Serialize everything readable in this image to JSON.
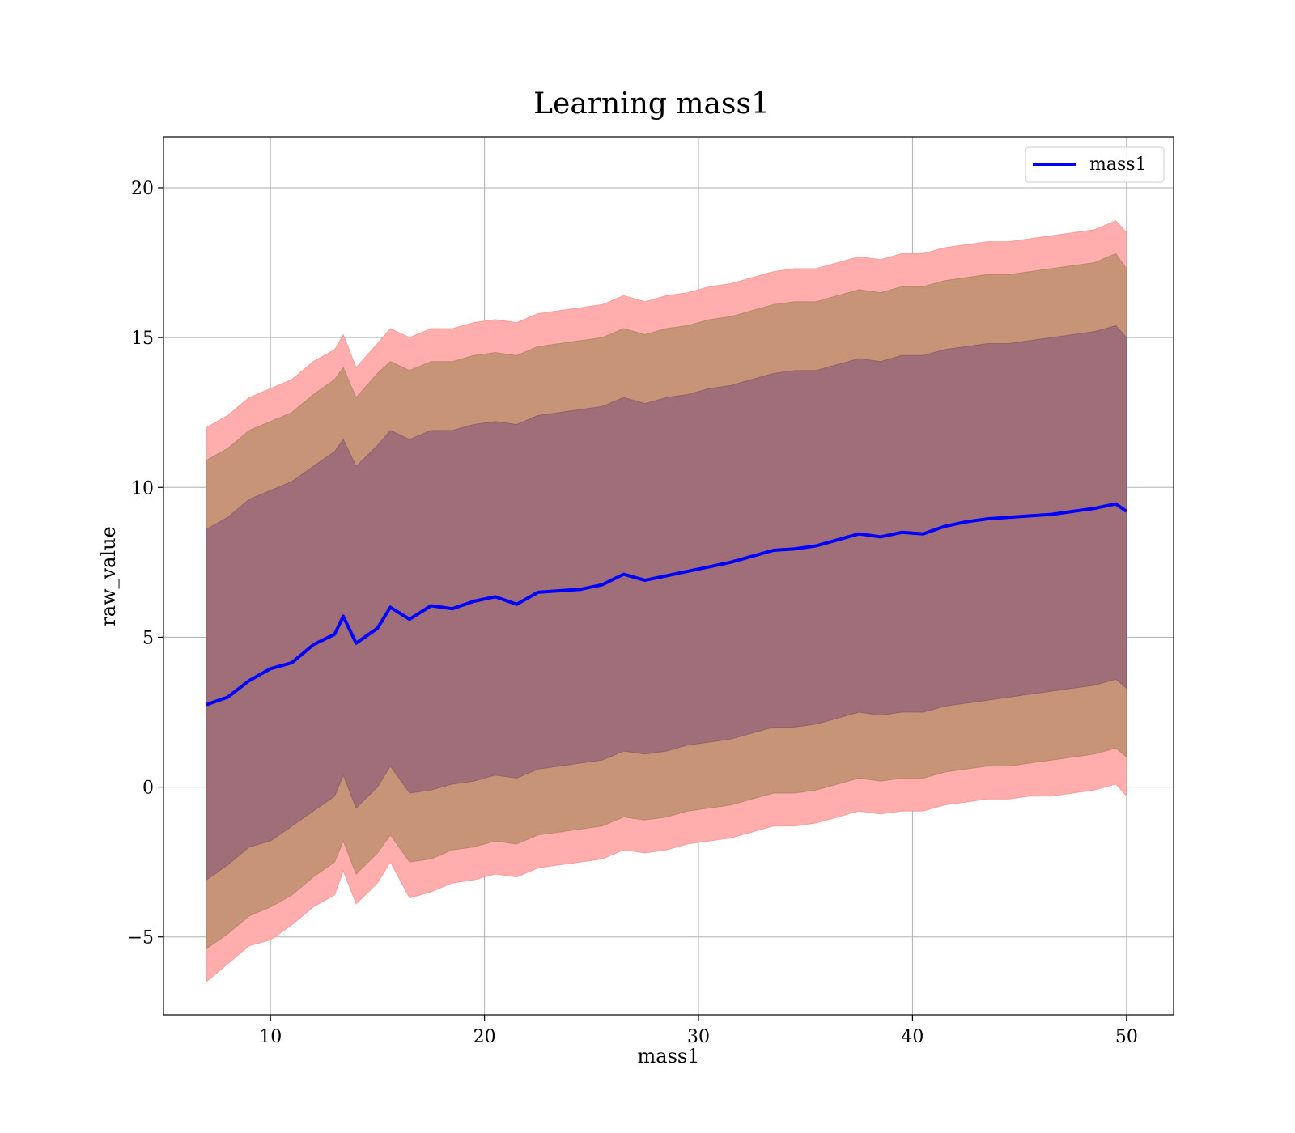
{
  "chart_data": {
    "type": "area",
    "title": "Learning mass1",
    "xlabel": "mass1",
    "ylabel": "raw_value",
    "xlim": [
      5,
      52.2
    ],
    "ylim": [
      -7.6,
      21.7
    ],
    "xticks": [
      10,
      20,
      30,
      40,
      50
    ],
    "yticks": [
      -5,
      0,
      5,
      10,
      15,
      20
    ],
    "xtick_labels": [
      "10",
      "20",
      "30",
      "40",
      "50"
    ],
    "ytick_labels": [
      "−5",
      "0",
      "5",
      "10",
      "15",
      "20"
    ],
    "grid": true,
    "legend": {
      "placement": "top-right",
      "entries": [
        "mass1"
      ]
    },
    "colors": {
      "line": "#0000ff",
      "band_outer": "#ffadad",
      "band_middle": "#c89478",
      "band_inner": "#a06e78"
    },
    "x": [
      7,
      8,
      9,
      10,
      11,
      12,
      13,
      13.4,
      14,
      15,
      15.6,
      16.5,
      17.5,
      18.5,
      19.5,
      20.5,
      21.5,
      22.5,
      23.5,
      24.5,
      25.5,
      26.5,
      27.5,
      28.5,
      29.5,
      30.5,
      31.5,
      32.5,
      33.5,
      34.5,
      35.5,
      36.5,
      37.5,
      38.5,
      39.5,
      40.5,
      41.5,
      42.5,
      43.5,
      44.5,
      45.5,
      46.5,
      47.5,
      48.5,
      49.5,
      50
    ],
    "series": [
      {
        "name": "mass1",
        "values": [
          2.75,
          3.0,
          3.55,
          3.95,
          4.15,
          4.75,
          5.1,
          5.7,
          4.8,
          5.3,
          6.0,
          5.6,
          6.05,
          5.95,
          6.2,
          6.35,
          6.1,
          6.5,
          6.55,
          6.6,
          6.75,
          7.1,
          6.9,
          7.05,
          7.2,
          7.35,
          7.5,
          7.7,
          7.9,
          7.95,
          8.05,
          8.25,
          8.45,
          8.35,
          8.5,
          8.45,
          8.7,
          8.85,
          8.95,
          9.0,
          9.05,
          9.1,
          9.2,
          9.3,
          9.45,
          9.2
        ]
      }
    ],
    "bands": [
      {
        "lower": [
          -6.5,
          -5.9,
          -5.3,
          -5.1,
          -4.6,
          -4.0,
          -3.6,
          -2.8,
          -3.9,
          -3.2,
          -2.5,
          -3.7,
          -3.5,
          -3.2,
          -3.1,
          -2.9,
          -3.0,
          -2.7,
          -2.6,
          -2.5,
          -2.4,
          -2.1,
          -2.2,
          -2.1,
          -1.9,
          -1.8,
          -1.7,
          -1.5,
          -1.3,
          -1.3,
          -1.2,
          -1.0,
          -0.8,
          -0.9,
          -0.8,
          -0.8,
          -0.6,
          -0.5,
          -0.4,
          -0.4,
          -0.3,
          -0.3,
          -0.2,
          -0.1,
          0.1,
          -0.3
        ],
        "upper": [
          12.0,
          12.4,
          13.0,
          13.3,
          13.6,
          14.2,
          14.6,
          15.1,
          14.0,
          14.8,
          15.3,
          15.0,
          15.3,
          15.3,
          15.5,
          15.6,
          15.5,
          15.8,
          15.9,
          16.0,
          16.1,
          16.4,
          16.2,
          16.4,
          16.5,
          16.7,
          16.8,
          17.0,
          17.2,
          17.3,
          17.3,
          17.5,
          17.7,
          17.6,
          17.8,
          17.8,
          18.0,
          18.1,
          18.2,
          18.2,
          18.3,
          18.4,
          18.5,
          18.6,
          18.9,
          18.5
        ]
      },
      {
        "lower": [
          -5.4,
          -4.9,
          -4.3,
          -4.0,
          -3.6,
          -3.0,
          -2.5,
          -1.8,
          -2.9,
          -2.2,
          -1.6,
          -2.5,
          -2.4,
          -2.1,
          -2.0,
          -1.8,
          -1.9,
          -1.6,
          -1.5,
          -1.4,
          -1.3,
          -1.0,
          -1.1,
          -1.0,
          -0.8,
          -0.7,
          -0.6,
          -0.4,
          -0.2,
          -0.2,
          -0.1,
          0.1,
          0.3,
          0.2,
          0.3,
          0.3,
          0.5,
          0.6,
          0.7,
          0.7,
          0.8,
          0.9,
          1.0,
          1.1,
          1.3,
          1.0
        ],
        "upper": [
          10.9,
          11.3,
          11.9,
          12.2,
          12.5,
          13.1,
          13.6,
          14.0,
          13.0,
          13.8,
          14.2,
          13.9,
          14.2,
          14.2,
          14.4,
          14.5,
          14.4,
          14.7,
          14.8,
          14.9,
          15.0,
          15.3,
          15.1,
          15.3,
          15.4,
          15.6,
          15.7,
          15.9,
          16.1,
          16.2,
          16.2,
          16.4,
          16.6,
          16.5,
          16.7,
          16.7,
          16.9,
          17.0,
          17.1,
          17.1,
          17.2,
          17.3,
          17.4,
          17.5,
          17.8,
          17.3
        ]
      },
      {
        "lower": [
          -3.1,
          -2.6,
          -2.0,
          -1.8,
          -1.3,
          -0.8,
          -0.3,
          0.4,
          -0.7,
          0.0,
          0.7,
          -0.2,
          -0.1,
          0.1,
          0.2,
          0.4,
          0.3,
          0.6,
          0.7,
          0.8,
          0.9,
          1.2,
          1.1,
          1.2,
          1.4,
          1.5,
          1.6,
          1.8,
          2.0,
          2.0,
          2.1,
          2.3,
          2.5,
          2.4,
          2.5,
          2.5,
          2.7,
          2.8,
          2.9,
          3.0,
          3.1,
          3.2,
          3.3,
          3.4,
          3.6,
          3.3
        ],
        "upper": [
          8.6,
          9.0,
          9.6,
          9.9,
          10.2,
          10.7,
          11.2,
          11.6,
          10.7,
          11.4,
          11.9,
          11.6,
          11.9,
          11.9,
          12.1,
          12.2,
          12.1,
          12.4,
          12.5,
          12.6,
          12.7,
          13.0,
          12.8,
          13.0,
          13.1,
          13.3,
          13.4,
          13.6,
          13.8,
          13.9,
          13.9,
          14.1,
          14.3,
          14.2,
          14.4,
          14.4,
          14.6,
          14.7,
          14.8,
          14.8,
          14.9,
          15.0,
          15.1,
          15.2,
          15.4,
          15.0
        ]
      }
    ]
  }
}
